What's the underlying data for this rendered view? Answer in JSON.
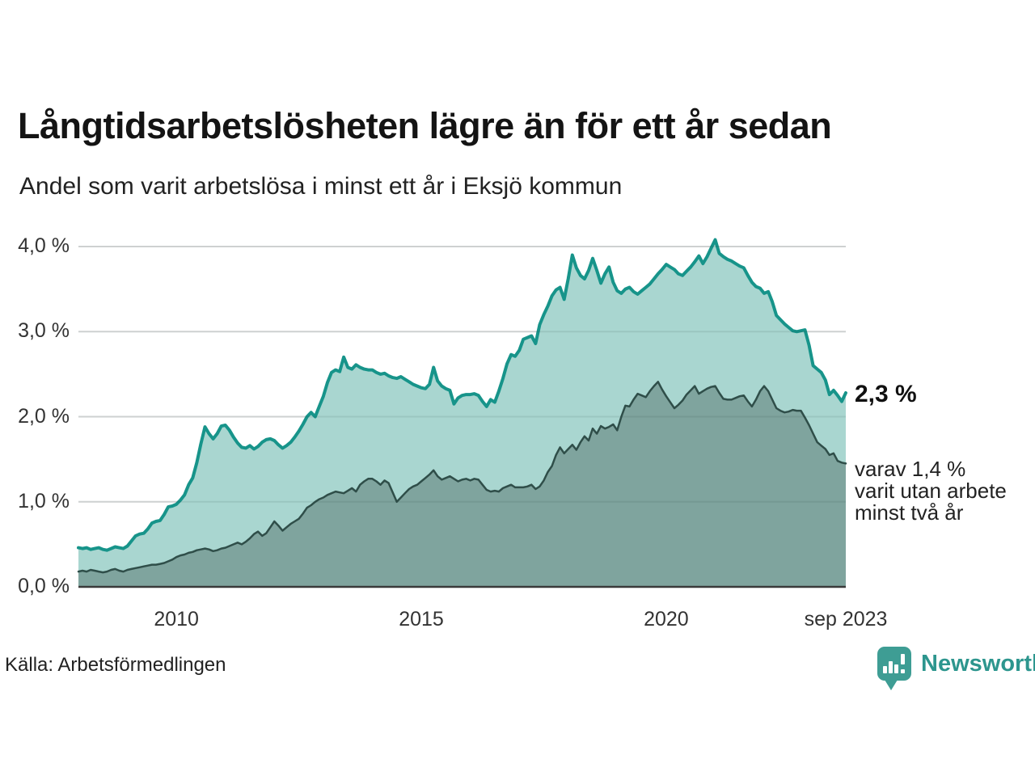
{
  "title": "Långtidsarbetslösheten lägre än för ett år sedan",
  "subtitle": "Andel som varit arbetslösa i minst ett år i Eksjö kommun",
  "annotation": {
    "latest_value": "2,3 %",
    "note": "varav 1,4 %\nvarit utan arbete\nminst två år"
  },
  "source": "Källa: Arbetsförmedlingen",
  "branding": {
    "name": "Newsworthy",
    "icon": "bar-chart-speech-bubble-icon"
  },
  "colors": {
    "accent_teal_line": "#17948A",
    "light_fill": "#A9D6D0",
    "dark_line": "#2F4E49",
    "dark_fill": "#7FA49E",
    "grid": "#E3E3E3",
    "grid_overlay": "rgba(30,60,55,0.10)",
    "baseline": "#3A3A3A",
    "brand_teal": "#3E9D94",
    "brand_text": "#2D968E"
  },
  "chart_data": {
    "type": "area",
    "title": "Långtidsarbetslösheten lägre än för ett år sedan",
    "subtitle": "Andel som varit arbetslösa i minst ett år i Eksjö kommun",
    "unit": "%",
    "frequency": "monthly",
    "x_start": "2008-01",
    "x_end": "2023-09",
    "ylim": [
      0,
      4.3
    ],
    "grid": "horizontal",
    "legend_position": "none",
    "y_ticks": [
      {
        "label": "0,0 %",
        "value": 0
      },
      {
        "label": "1,0 %",
        "value": 1
      },
      {
        "label": "2,0 %",
        "value": 2
      },
      {
        "label": "3,0 %",
        "value": 3
      },
      {
        "label": "4,0 %",
        "value": 4
      }
    ],
    "x_ticks": [
      {
        "label": "2010",
        "month_index": 24
      },
      {
        "label": "2015",
        "month_index": 84
      },
      {
        "label": "2020",
        "month_index": 144
      },
      {
        "label": "sep 2023",
        "month_index": 188
      }
    ],
    "series": [
      {
        "name": "Andel som varit arbetslösa i minst ett år",
        "line_color": "#17948A",
        "fill_color": "#A9D6D0",
        "line_width": 4,
        "end_label": "2,3 %",
        "values": [
          0.46,
          0.45,
          0.46,
          0.44,
          0.45,
          0.46,
          0.44,
          0.43,
          0.45,
          0.47,
          0.46,
          0.45,
          0.48,
          0.54,
          0.6,
          0.62,
          0.63,
          0.68,
          0.75,
          0.77,
          0.78,
          0.85,
          0.94,
          0.95,
          0.97,
          1.02,
          1.08,
          1.2,
          1.28,
          1.46,
          1.68,
          1.88,
          1.8,
          1.74,
          1.8,
          1.89,
          1.9,
          1.84,
          1.76,
          1.69,
          1.64,
          1.63,
          1.66,
          1.62,
          1.65,
          1.7,
          1.73,
          1.74,
          1.72,
          1.67,
          1.63,
          1.66,
          1.7,
          1.76,
          1.83,
          1.91,
          2.0,
          2.05,
          2.0,
          2.12,
          2.24,
          2.4,
          2.52,
          2.55,
          2.53,
          2.7,
          2.58,
          2.56,
          2.61,
          2.58,
          2.56,
          2.55,
          2.55,
          2.52,
          2.5,
          2.51,
          2.48,
          2.46,
          2.45,
          2.47,
          2.44,
          2.41,
          2.38,
          2.36,
          2.34,
          2.33,
          2.38,
          2.58,
          2.42,
          2.36,
          2.33,
          2.31,
          2.15,
          2.22,
          2.25,
          2.26,
          2.26,
          2.27,
          2.25,
          2.18,
          2.12,
          2.2,
          2.17,
          2.3,
          2.45,
          2.62,
          2.73,
          2.71,
          2.78,
          2.91,
          2.93,
          2.95,
          2.86,
          3.08,
          3.2,
          3.3,
          3.42,
          3.49,
          3.52,
          3.38,
          3.62,
          3.9,
          3.75,
          3.66,
          3.62,
          3.72,
          3.86,
          3.72,
          3.57,
          3.68,
          3.76,
          3.58,
          3.48,
          3.45,
          3.5,
          3.52,
          3.47,
          3.44,
          3.48,
          3.52,
          3.56,
          3.62,
          3.68,
          3.73,
          3.79,
          3.76,
          3.73,
          3.68,
          3.66,
          3.71,
          3.76,
          3.82,
          3.89,
          3.8,
          3.88,
          3.98,
          4.08,
          3.92,
          3.88,
          3.85,
          3.83,
          3.8,
          3.77,
          3.75,
          3.66,
          3.58,
          3.53,
          3.51,
          3.45,
          3.47,
          3.35,
          3.19,
          3.14,
          3.09,
          3.05,
          3.01,
          3.0,
          3.01,
          3.02,
          2.84,
          2.6,
          2.56,
          2.52,
          2.43,
          2.26,
          2.31,
          2.25,
          2.18,
          2.28
        ]
      },
      {
        "name": "varav utan arbete i minst två år",
        "line_color": "#2F4E49",
        "fill_color": "#7FA49E",
        "line_width": 2.5,
        "end_label": "varav 1,4 % varit utan arbete minst två år",
        "values": [
          0.18,
          0.19,
          0.18,
          0.2,
          0.19,
          0.18,
          0.17,
          0.18,
          0.2,
          0.21,
          0.19,
          0.18,
          0.2,
          0.21,
          0.22,
          0.23,
          0.24,
          0.25,
          0.26,
          0.26,
          0.27,
          0.28,
          0.3,
          0.32,
          0.35,
          0.37,
          0.38,
          0.4,
          0.41,
          0.43,
          0.44,
          0.45,
          0.44,
          0.42,
          0.43,
          0.45,
          0.46,
          0.48,
          0.5,
          0.52,
          0.5,
          0.53,
          0.57,
          0.62,
          0.65,
          0.6,
          0.63,
          0.7,
          0.77,
          0.72,
          0.66,
          0.7,
          0.74,
          0.77,
          0.8,
          0.86,
          0.93,
          0.96,
          1.0,
          1.03,
          1.05,
          1.08,
          1.1,
          1.12,
          1.11,
          1.1,
          1.13,
          1.16,
          1.12,
          1.2,
          1.24,
          1.27,
          1.27,
          1.24,
          1.2,
          1.25,
          1.22,
          1.11,
          1.0,
          1.05,
          1.1,
          1.15,
          1.18,
          1.2,
          1.24,
          1.28,
          1.32,
          1.37,
          1.3,
          1.26,
          1.28,
          1.3,
          1.27,
          1.24,
          1.26,
          1.27,
          1.25,
          1.27,
          1.26,
          1.2,
          1.14,
          1.12,
          1.13,
          1.12,
          1.16,
          1.18,
          1.2,
          1.17,
          1.17,
          1.17,
          1.18,
          1.2,
          1.15,
          1.18,
          1.25,
          1.35,
          1.42,
          1.55,
          1.64,
          1.57,
          1.62,
          1.67,
          1.61,
          1.7,
          1.77,
          1.72,
          1.86,
          1.8,
          1.89,
          1.86,
          1.88,
          1.91,
          1.84,
          2.0,
          2.13,
          2.12,
          2.2,
          2.27,
          2.25,
          2.23,
          2.3,
          2.36,
          2.41,
          2.32,
          2.24,
          2.17,
          2.1,
          2.14,
          2.19,
          2.26,
          2.31,
          2.36,
          2.27,
          2.3,
          2.33,
          2.35,
          2.36,
          2.28,
          2.21,
          2.2,
          2.2,
          2.22,
          2.24,
          2.25,
          2.18,
          2.12,
          2.2,
          2.3,
          2.36,
          2.3,
          2.2,
          2.1,
          2.07,
          2.05,
          2.06,
          2.08,
          2.07,
          2.07,
          1.99,
          1.9,
          1.8,
          1.7,
          1.66,
          1.62,
          1.55,
          1.57,
          1.48,
          1.46,
          1.45
        ]
      }
    ]
  }
}
